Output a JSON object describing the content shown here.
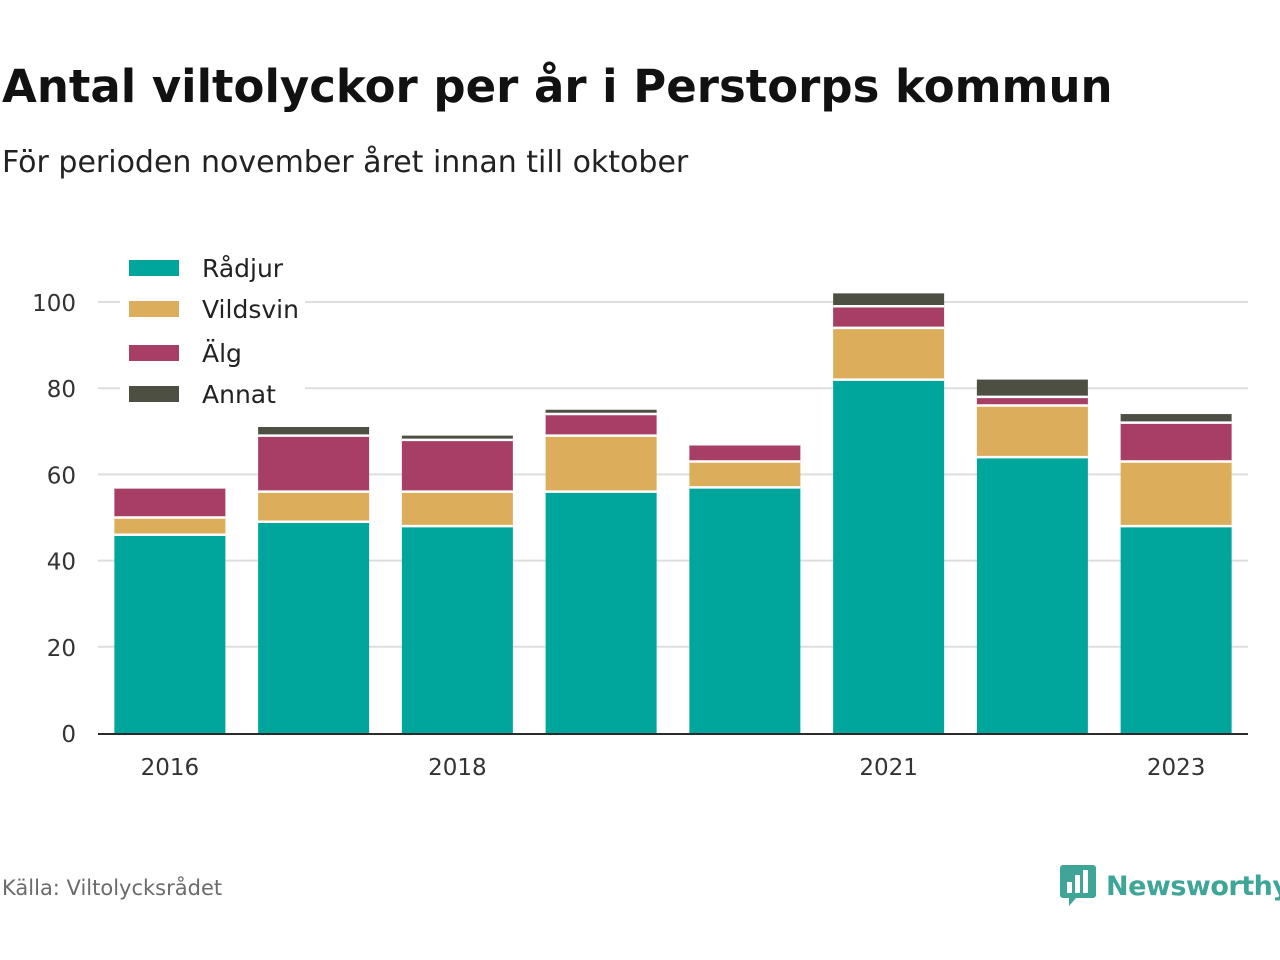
{
  "title": "Antal viltolyckor per år i Perstorps kommun",
  "subtitle": "För perioden november året innan till oktober",
  "source": "Källa: Viltolycksrådet",
  "brand": {
    "name": "Newsworthy",
    "color": "#3fa596",
    "icon": "bar-chart-speech-bubble-icon"
  },
  "chart_data": {
    "type": "bar",
    "stacked": true,
    "x": [
      2016,
      2017,
      2018,
      2019,
      2020,
      2021,
      2022,
      2023
    ],
    "x_tick_labels": [
      "2016",
      "",
      "2018",
      "",
      "",
      "2021",
      "",
      "2023"
    ],
    "ylim": [
      0,
      110
    ],
    "y_ticks": [
      0,
      20,
      40,
      60,
      80,
      100
    ],
    "grid": true,
    "legend_position": "top-left",
    "series": [
      {
        "name": "Rådjur",
        "color": "#00a59b",
        "values": [
          46,
          49,
          48,
          56,
          57,
          82,
          64,
          48
        ]
      },
      {
        "name": "Vildsvin",
        "color": "#dcad5b",
        "values": [
          4,
          7,
          8,
          13,
          6,
          12,
          12,
          15
        ]
      },
      {
        "name": "Älg",
        "color": "#a63e66",
        "values": [
          7,
          13,
          12,
          5,
          4,
          5,
          2,
          9
        ]
      },
      {
        "name": "Annat",
        "color": "#4d4f42",
        "values": [
          0,
          2,
          1,
          1,
          0,
          3,
          4,
          2
        ]
      }
    ]
  }
}
